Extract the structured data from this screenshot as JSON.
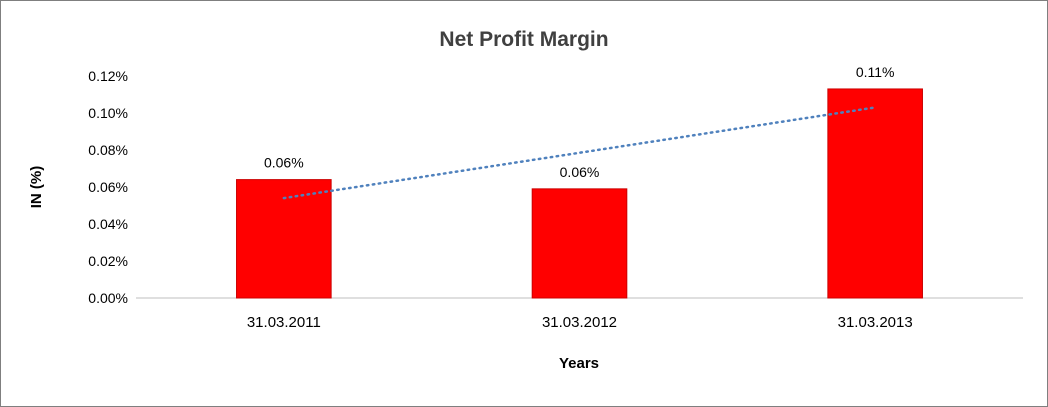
{
  "chart_data": {
    "type": "bar",
    "title": "Net Profit Margin",
    "categories": [
      "31.03.2011",
      "31.03.2012",
      "31.03.2013"
    ],
    "values": [
      0.064,
      0.059,
      0.113
    ],
    "data_labels": [
      "0.06%",
      "0.06%",
      "0.11%"
    ],
    "xlabel": "Years",
    "ylabel": "IN (%)",
    "ylim": [
      0,
      0.12
    ],
    "ytick_step": 0.02,
    "ytick_labels": [
      "0.00%",
      "0.02%",
      "0.04%",
      "0.06%",
      "0.08%",
      "0.10%",
      "0.12%"
    ],
    "grid": false,
    "legend": "none",
    "bar_color": "#FF0000",
    "bar_border_color": "#CC0000",
    "axis_line_color": "#BFBFBF",
    "trendline": {
      "style": "dotted",
      "color": "#4F81BD",
      "start_value": 0.054,
      "end_value": 0.103
    }
  }
}
